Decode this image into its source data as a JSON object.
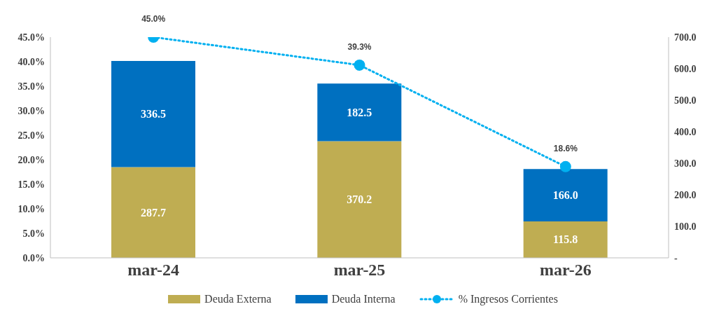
{
  "chart_data": {
    "type": "bar",
    "categories": [
      "mar-24",
      "mar-25",
      "mar-26"
    ],
    "stacked": true,
    "legend": "bottom",
    "grid": false,
    "series": [
      {
        "name": "Deuda Externa",
        "axis": "y2",
        "color": "#bfad52",
        "values": [
          287.7,
          370.2,
          115.8
        ],
        "value_labels": [
          "287.7",
          "370.2",
          "115.8"
        ]
      },
      {
        "name": "Deuda Interna",
        "axis": "y2",
        "color": "#0070c0",
        "values": [
          336.5,
          182.5,
          166.0
        ],
        "value_labels": [
          "336.5",
          "182.5",
          "166.0"
        ]
      },
      {
        "name": "% Ingresos Corrientes",
        "type": "line",
        "axis": "y",
        "color": "#00b0f0",
        "marker": "circle",
        "line_style": "dotted",
        "values": [
          45.0,
          39.3,
          18.6
        ],
        "value_labels": [
          "45.0%",
          "39.3%",
          "18.6%"
        ]
      }
    ],
    "ylim": [
      0,
      45
    ],
    "yticks": [
      {
        "value": 0,
        "label": "0.0%"
      },
      {
        "value": 5,
        "label": "5.0%"
      },
      {
        "value": 10,
        "label": "10.0%"
      },
      {
        "value": 15,
        "label": "15.0%"
      },
      {
        "value": 20,
        "label": "20.0%"
      },
      {
        "value": 25,
        "label": "25.0%"
      },
      {
        "value": 30,
        "label": "30.0%"
      },
      {
        "value": 35,
        "label": "35.0%"
      },
      {
        "value": 40,
        "label": "40.0%"
      },
      {
        "value": 45,
        "label": "45.0%"
      }
    ],
    "y2lim": [
      0,
      700
    ],
    "y2ticks": [
      {
        "value": 0,
        "label": "-"
      },
      {
        "value": 100,
        "label": "100.0"
      },
      {
        "value": 200,
        "label": "200.0"
      },
      {
        "value": 300,
        "label": "300.0"
      },
      {
        "value": 400,
        "label": "400.0"
      },
      {
        "value": 500,
        "label": "500.0"
      },
      {
        "value": 600,
        "label": "600.0"
      },
      {
        "value": 700,
        "label": "700.0"
      }
    ]
  }
}
